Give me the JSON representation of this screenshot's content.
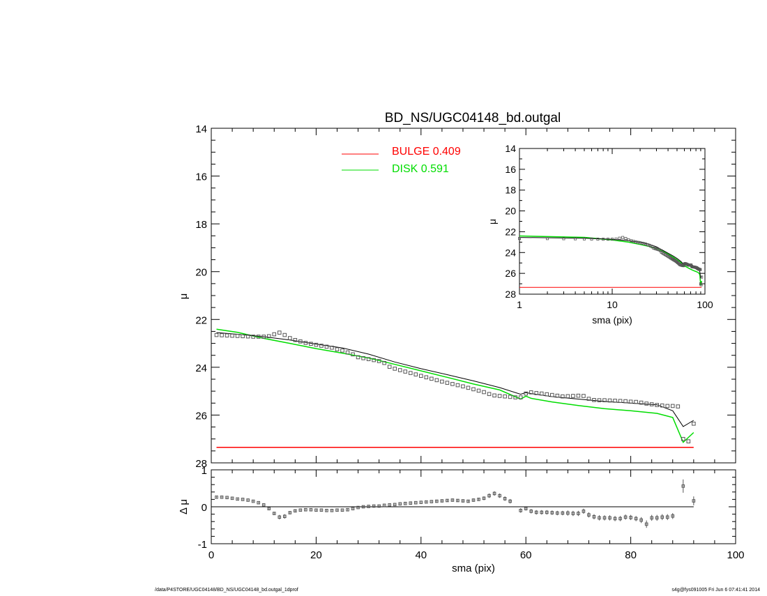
{
  "title": "BD_NS/UGC04148_bd.outgal",
  "footer": {
    "left": "/data/P4STORE/UGC04148/BD_NS/UGC04148_bd.outgal_1dprof",
    "right": "s4g@fys091005  Fri Jun  6 07:41:41 2014"
  },
  "legend": {
    "bulge": "BULGE  0.409",
    "disk": "DISK  0.591"
  },
  "colors": {
    "bulge": "#ff0000",
    "disk": "#00dd00",
    "total": "#000000",
    "data": "#555555"
  },
  "chart_data": [
    {
      "id": "main",
      "type": "scatter",
      "xlabel": "",
      "ylabel": "μ",
      "xlim": [
        0,
        100
      ],
      "ylim": [
        28,
        14
      ],
      "y_inverted": true,
      "yticks": [
        "14",
        "16",
        "18",
        "20",
        "22",
        "24",
        "26",
        "28"
      ],
      "observed_sma": [
        1,
        2,
        3,
        4,
        5,
        6,
        7,
        8,
        9,
        10,
        11,
        12,
        13,
        14,
        15,
        16,
        17,
        18,
        19,
        20,
        21,
        22,
        23,
        24,
        25,
        26,
        27,
        28,
        29,
        30,
        31,
        32,
        33,
        34,
        35,
        36,
        37,
        38,
        39,
        40,
        41,
        42,
        43,
        44,
        45,
        46,
        47,
        48,
        49,
        50,
        51,
        52,
        53,
        54,
        55,
        56,
        57,
        58,
        59,
        60,
        61,
        62,
        63,
        64,
        65,
        66,
        67,
        68,
        69,
        70,
        71,
        72,
        73,
        74,
        75,
        76,
        77,
        78,
        79,
        80,
        81,
        82,
        83,
        84,
        85,
        86,
        87,
        88,
        89,
        90,
        91,
        92
      ],
      "observed_mu": [
        22.65,
        22.66,
        22.67,
        22.68,
        22.69,
        22.7,
        22.71,
        22.72,
        22.72,
        22.72,
        22.7,
        22.62,
        22.55,
        22.65,
        22.78,
        22.86,
        22.92,
        22.98,
        23.02,
        23.06,
        23.1,
        23.14,
        23.18,
        23.25,
        23.3,
        23.38,
        23.46,
        23.58,
        23.62,
        23.66,
        23.7,
        23.74,
        23.82,
        23.98,
        24.06,
        24.12,
        24.18,
        24.24,
        24.3,
        24.36,
        24.42,
        24.48,
        24.54,
        24.6,
        24.65,
        24.7,
        24.75,
        24.8,
        24.86,
        24.92,
        24.98,
        25.04,
        25.12,
        25.18,
        25.2,
        25.22,
        25.24,
        25.26,
        25.26,
        25.1,
        25.05,
        25.08,
        25.1,
        25.13,
        25.16,
        25.19,
        25.22,
        25.21,
        25.2,
        25.19,
        25.2,
        25.32,
        25.37,
        25.38,
        25.38,
        25.39,
        25.4,
        25.41,
        25.42,
        25.44,
        25.45,
        25.48,
        25.52,
        25.55,
        25.58,
        25.6,
        25.62,
        25.62,
        25.64,
        27.0,
        27.1,
        26.36
      ],
      "total_model_sma": [
        1,
        5,
        10,
        15,
        20,
        25,
        30,
        35,
        40,
        45,
        50,
        55,
        59,
        60,
        61,
        65,
        70,
        75,
        80,
        85,
        88,
        90,
        92
      ],
      "total_model_mu": [
        22.55,
        22.62,
        22.72,
        22.86,
        23.03,
        23.19,
        23.45,
        23.78,
        24.06,
        24.31,
        24.57,
        24.85,
        25.13,
        25.06,
        25.1,
        25.23,
        25.33,
        25.43,
        25.5,
        25.57,
        25.82,
        26.48,
        26.22
      ],
      "disk_sma": [
        1,
        5,
        10,
        15,
        20,
        25,
        30,
        35,
        40,
        45,
        50,
        55,
        59,
        60,
        61,
        65,
        70,
        75,
        80,
        85,
        88,
        90,
        92
      ],
      "disk_mu": [
        22.41,
        22.54,
        22.79,
        23.0,
        23.22,
        23.41,
        23.61,
        23.88,
        24.15,
        24.42,
        24.7,
        24.95,
        25.33,
        25.21,
        25.3,
        25.45,
        25.6,
        25.73,
        25.82,
        25.93,
        26.1,
        27.14,
        26.73
      ],
      "bulge_sma": [
        1,
        92
      ],
      "bulge_mu": [
        27.35,
        27.35
      ]
    },
    {
      "id": "inset",
      "type": "line",
      "xscale": "log",
      "xlabel": "sma (pix)",
      "ylabel": "μ",
      "xlim": [
        1,
        100
      ],
      "ylim": [
        28,
        14
      ],
      "y_inverted": true,
      "xticks": [
        "1",
        "10",
        "100"
      ],
      "yticks": [
        "14",
        "16",
        "18",
        "20",
        "22",
        "24",
        "26",
        "28"
      ]
    },
    {
      "id": "residual",
      "type": "scatter",
      "xlabel": "sma (pix)",
      "ylabel": "Δ μ",
      "xlim": [
        0,
        100
      ],
      "ylim": [
        -1,
        1
      ],
      "xticks": [
        "0",
        "20",
        "40",
        "60",
        "80",
        "100"
      ],
      "yticks": [
        "-1",
        "0",
        "1"
      ],
      "sma": [
        1,
        2,
        3,
        4,
        5,
        6,
        7,
        8,
        9,
        10,
        11,
        12,
        13,
        14,
        15,
        16,
        17,
        18,
        19,
        20,
        21,
        22,
        23,
        24,
        25,
        26,
        27,
        28,
        29,
        30,
        31,
        32,
        33,
        34,
        35,
        36,
        37,
        38,
        39,
        40,
        41,
        42,
        43,
        44,
        45,
        46,
        47,
        48,
        49,
        50,
        51,
        52,
        53,
        54,
        55,
        56,
        57,
        59,
        60,
        61,
        62,
        63,
        64,
        65,
        66,
        67,
        68,
        69,
        70,
        71,
        72,
        73,
        74,
        75,
        76,
        77,
        78,
        79,
        80,
        81,
        82,
        83,
        84,
        85,
        86,
        87,
        88,
        90,
        92
      ],
      "delta_mu": [
        0.26,
        0.26,
        0.25,
        0.23,
        0.21,
        0.2,
        0.18,
        0.15,
        0.11,
        0.05,
        -0.05,
        -0.18,
        -0.28,
        -0.26,
        -0.16,
        -0.11,
        -0.09,
        -0.08,
        -0.08,
        -0.09,
        -0.09,
        -0.1,
        -0.1,
        -0.09,
        -0.09,
        -0.08,
        -0.05,
        -0.02,
        0.0,
        0.01,
        0.02,
        0.02,
        0.04,
        0.05,
        0.06,
        0.08,
        0.09,
        0.1,
        0.11,
        0.12,
        0.13,
        0.14,
        0.15,
        0.16,
        0.17,
        0.18,
        0.17,
        0.16,
        0.15,
        0.18,
        0.2,
        0.23,
        0.3,
        0.36,
        0.3,
        0.22,
        0.15,
        -0.1,
        -0.05,
        -0.12,
        -0.15,
        -0.15,
        -0.15,
        -0.16,
        -0.17,
        -0.17,
        -0.17,
        -0.18,
        -0.18,
        -0.12,
        -0.22,
        -0.27,
        -0.3,
        -0.3,
        -0.3,
        -0.32,
        -0.32,
        -0.28,
        -0.29,
        -0.32,
        -0.36,
        -0.47,
        -0.3,
        -0.3,
        -0.28,
        -0.28,
        -0.25,
        0.56,
        0.16
      ],
      "errors": [
        0.02,
        0.02,
        0.02,
        0.02,
        0.02,
        0.02,
        0.02,
        0.02,
        0.02,
        0.02,
        0.03,
        0.04,
        0.06,
        0.06,
        0.04,
        0.03,
        0.02,
        0.02,
        0.02,
        0.02,
        0.02,
        0.02,
        0.02,
        0.02,
        0.02,
        0.02,
        0.02,
        0.02,
        0.02,
        0.02,
        0.02,
        0.02,
        0.02,
        0.02,
        0.02,
        0.02,
        0.02,
        0.02,
        0.02,
        0.02,
        0.02,
        0.02,
        0.03,
        0.03,
        0.03,
        0.03,
        0.03,
        0.03,
        0.03,
        0.04,
        0.04,
        0.05,
        0.06,
        0.06,
        0.06,
        0.06,
        0.06,
        0.06,
        0.05,
        0.06,
        0.06,
        0.06,
        0.06,
        0.06,
        0.06,
        0.06,
        0.07,
        0.07,
        0.07,
        0.07,
        0.07,
        0.07,
        0.07,
        0.07,
        0.07,
        0.07,
        0.07,
        0.07,
        0.07,
        0.07,
        0.08,
        0.1,
        0.08,
        0.08,
        0.08,
        0.08,
        0.08,
        0.18,
        0.12
      ]
    }
  ]
}
